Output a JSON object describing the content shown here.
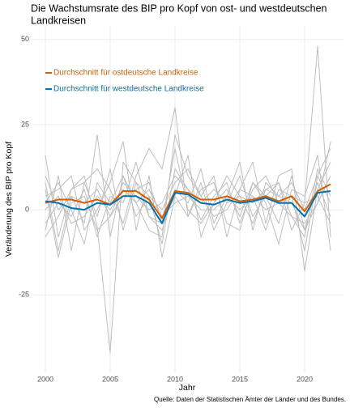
{
  "chart_data": {
    "type": "line",
    "title": [
      "Die Wachstumsrate des BIP pro Kopf von ost- und westdeutschen",
      "Landkreisen"
    ],
    "xlabel": "Jahr",
    "ylabel": "Veränderung des BIP pro Kopf",
    "caption": "Quelle: Daten der Statistischen Ämter der Länder und des Bundes.",
    "x": [
      2000,
      2001,
      2002,
      2003,
      2004,
      2005,
      2006,
      2007,
      2008,
      2009,
      2010,
      2011,
      2012,
      2013,
      2014,
      2015,
      2016,
      2017,
      2018,
      2019,
      2020,
      2021,
      2022
    ],
    "xlim": [
      1999,
      2023
    ],
    "xticks": [
      2000,
      2005,
      2010,
      2015,
      2020
    ],
    "ylim": [
      -48,
      54
    ],
    "yticks": [
      -25,
      0,
      25,
      50
    ],
    "grid": true,
    "legend": "top-left",
    "series": [
      {
        "color": "#bebebe",
        "values": [
          16,
          -8,
          6,
          10,
          -5,
          -42,
          14,
          8,
          4,
          -10,
          12,
          6,
          -3,
          4,
          8,
          -4,
          6,
          10,
          2,
          4,
          -12,
          10,
          18
        ]
      },
      {
        "color": "#bebebe",
        "values": [
          -6,
          10,
          -12,
          8,
          12,
          6,
          -4,
          10,
          18,
          12,
          30,
          -2,
          8,
          -6,
          2,
          10,
          -2,
          4,
          8,
          -6,
          2,
          48,
          -8
        ]
      },
      {
        "color": "#bebebe",
        "values": [
          8,
          -12,
          4,
          -4,
          22,
          -8,
          10,
          2,
          -6,
          -8,
          22,
          10,
          4,
          10,
          -8,
          6,
          14,
          -4,
          10,
          12,
          -18,
          6,
          14
        ]
      },
      {
        "color": "#bebebe",
        "values": [
          4,
          6,
          10,
          -6,
          0,
          8,
          20,
          -6,
          10,
          -14,
          4,
          16,
          -8,
          2,
          6,
          -2,
          8,
          2,
          -10,
          6,
          4,
          16,
          -12
        ]
      },
      {
        "color": "#bebebe",
        "values": [
          -4,
          2,
          -2,
          6,
          -8,
          4,
          2,
          14,
          -2,
          -6,
          6,
          2,
          12,
          -4,
          4,
          14,
          -6,
          8,
          4,
          2,
          -6,
          2,
          20
        ]
      },
      {
        "color": "#bebebe",
        "values": [
          10,
          0,
          4,
          2,
          6,
          -2,
          8,
          4,
          0,
          2,
          10,
          6,
          2,
          6,
          2,
          4,
          2,
          6,
          4,
          8,
          0,
          10,
          2
        ]
      },
      {
        "color": "#bebebe",
        "values": [
          0,
          4,
          -4,
          -2,
          4,
          0,
          6,
          2,
          6,
          -2,
          2,
          4,
          0,
          0,
          4,
          0,
          4,
          0,
          2,
          -2,
          -4,
          2,
          10
        ]
      },
      {
        "color": "#bebebe",
        "values": [
          -8,
          -2,
          6,
          8,
          -2,
          12,
          -6,
          8,
          -2,
          -4,
          4,
          -2,
          6,
          8,
          -4,
          -6,
          8,
          4,
          -4,
          10,
          -6,
          8,
          -2
        ]
      },
      {
        "color": "#bebebe",
        "values": [
          6,
          -14,
          2,
          4,
          -6,
          -2,
          4,
          6,
          8,
          -4,
          18,
          0,
          -4,
          2,
          10,
          4,
          -4,
          6,
          8,
          -2,
          -8,
          12,
          4
        ]
      },
      {
        "color": "#bebebe",
        "values": [
          2,
          8,
          0,
          -10,
          8,
          2,
          10,
          -2,
          4,
          0,
          8,
          12,
          4,
          -2,
          0,
          6,
          4,
          -6,
          6,
          4,
          2,
          4,
          -4
        ]
      },
      {
        "name": "Durchschnitt für ostdeutsche Landkreise",
        "color": "#d55e00",
        "values": [
          2,
          3,
          3,
          2,
          3,
          1.5,
          5.5,
          5.5,
          3,
          -2.5,
          5.5,
          5,
          3,
          3,
          4,
          2.5,
          3,
          4,
          2.5,
          4,
          -0.5,
          5.5,
          7.5
        ]
      },
      {
        "name": "Durchschnitt für westdeutsche Landkreise",
        "color": "#0072b2",
        "values": [
          2.5,
          2,
          0.5,
          0,
          2,
          1.5,
          4,
          4,
          2,
          -4,
          5,
          4.5,
          2,
          1.5,
          3,
          2,
          2.5,
          3.5,
          2,
          2,
          -2,
          5,
          5.5
        ]
      }
    ]
  }
}
